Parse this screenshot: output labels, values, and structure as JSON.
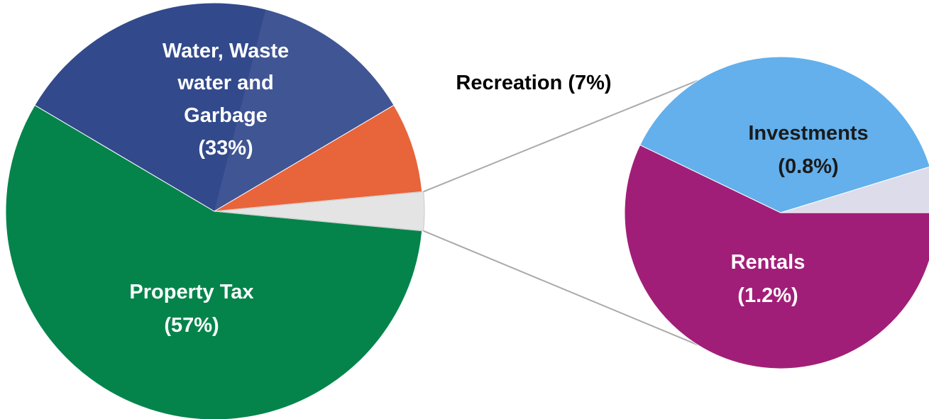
{
  "chart_data": [
    {
      "type": "pie",
      "title": "",
      "slices": [
        {
          "name": "Property Tax",
          "value": 57,
          "label_lines": [
            "Property Tax",
            "(57%)"
          ],
          "color": "#04844b",
          "label_color": "#ffffff"
        },
        {
          "name": "Water, Waste water and Garbage",
          "value": 33,
          "label_lines": [
            "Water, Waste",
            "water and",
            "Garbage",
            "(33%)"
          ],
          "color": "#32498c",
          "label_color": "#ffffff"
        },
        {
          "name": "Recreation",
          "value": 7,
          "label_lines": [
            "Recreation (7%)"
          ],
          "color": "#e8643a",
          "label_color": "#000000"
        },
        {
          "name": "Other",
          "value": 3,
          "label_lines": [],
          "color": "#e4e4e4",
          "label_color": "#000000"
        }
      ]
    },
    {
      "type": "pie",
      "title": "",
      "slices": [
        {
          "name": "Rentals",
          "value": 1.2,
          "label_lines": [
            "Rentals",
            "(1.2%)"
          ],
          "color": "#a11e78",
          "label_color": "#ffffff"
        },
        {
          "name": "Investments",
          "value": 0.8,
          "label_lines": [
            "Investments",
            "(0.8%)"
          ],
          "color": "#63b0ec",
          "label_color": "#1a1a1a"
        },
        {
          "name": "Other",
          "value": 0.1,
          "label_lines": [],
          "color": "#dcdcea",
          "label_color": "#000000"
        }
      ]
    }
  ],
  "colors": {
    "connector": "#aaaaaa",
    "slice_edge": "#ffffff"
  }
}
